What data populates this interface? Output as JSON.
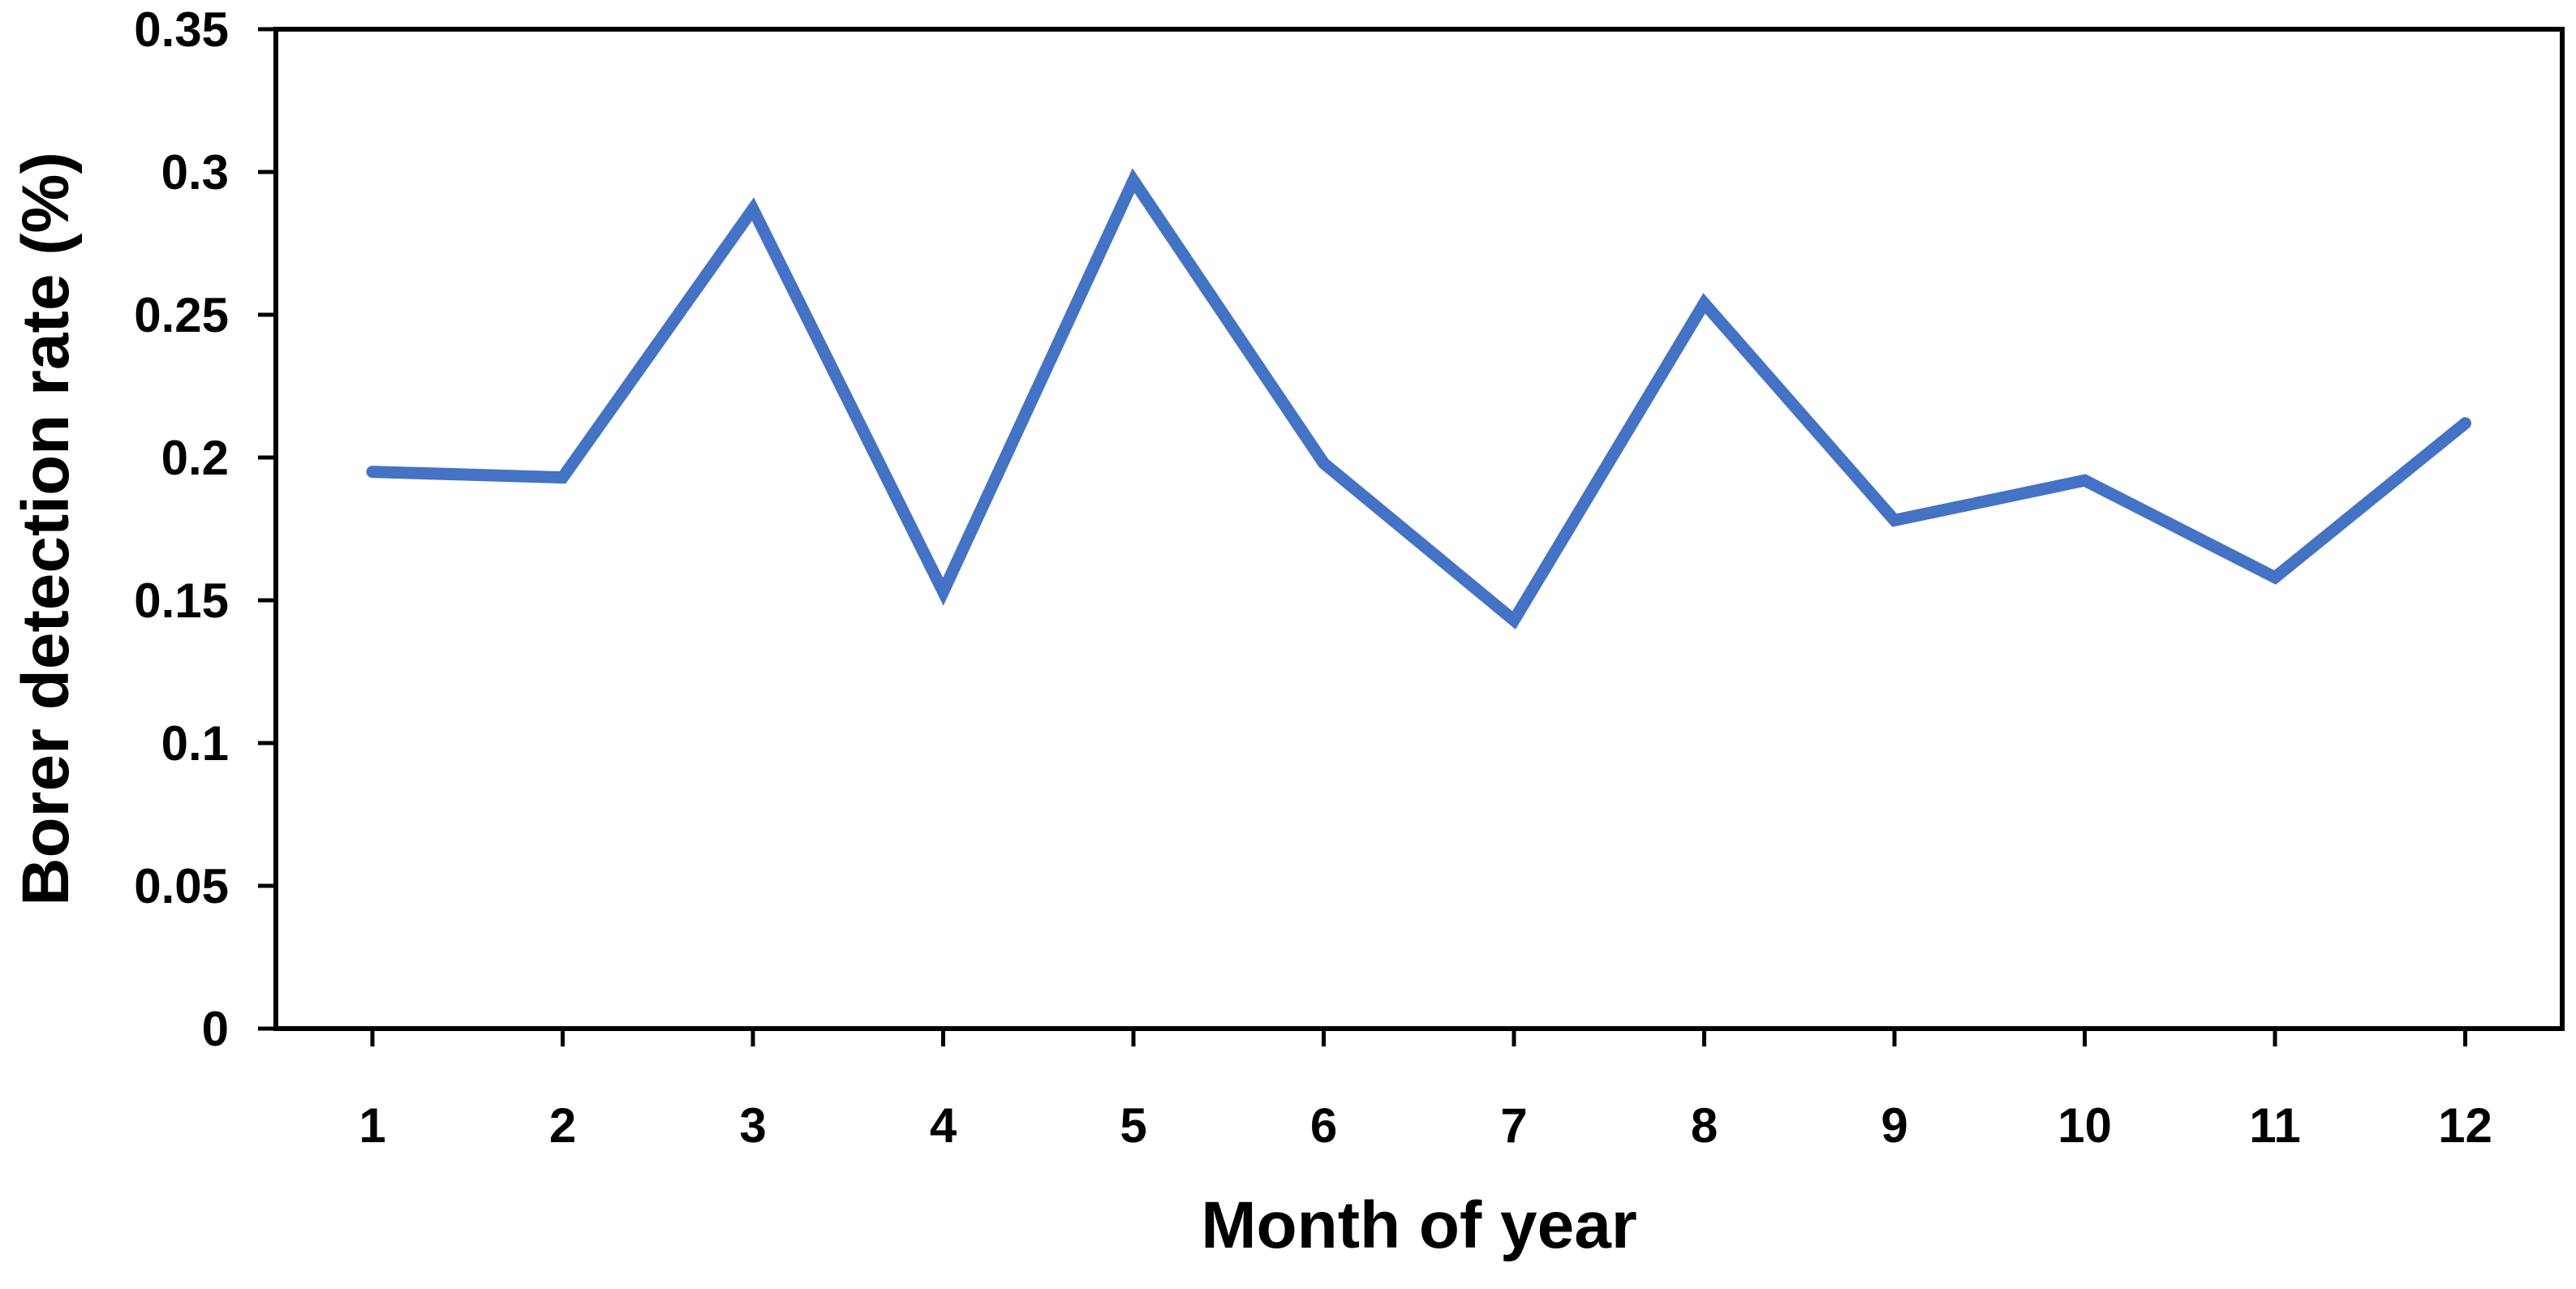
{
  "chart_data": {
    "type": "line",
    "title": "",
    "xlabel": "Month of year",
    "ylabel": "Borer detection rate (%)",
    "categories": [
      "1",
      "2",
      "3",
      "4",
      "5",
      "6",
      "7",
      "8",
      "9",
      "10",
      "11",
      "12"
    ],
    "series": [
      {
        "values": [
          0.195,
          0.193,
          0.287,
          0.153,
          0.297,
          0.198,
          0.143,
          0.254,
          0.178,
          0.192,
          0.158,
          0.212
        ],
        "color": "#4472C4"
      }
    ],
    "ylim": [
      0,
      0.35
    ],
    "yticks": [
      "0",
      "0.05",
      "0.1",
      "0.15",
      "0.2",
      "0.25",
      "0.3",
      "0.35"
    ],
    "grid": false,
    "legend": "none"
  }
}
